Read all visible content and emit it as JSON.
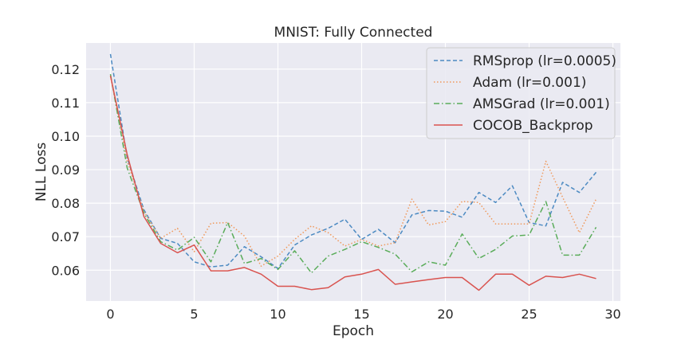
{
  "chart_data": {
    "type": "line",
    "title": "MNIST: Fully Connected",
    "xlabel": "Epoch",
    "ylabel": "NLL Loss",
    "xlim": [
      -1.45,
      30.45
    ],
    "ylim": [
      0.0508,
      0.1278
    ],
    "xticks": [
      0,
      5,
      10,
      15,
      20,
      25,
      30
    ],
    "yticks": [
      0.06,
      0.07,
      0.08,
      0.09,
      0.1,
      0.11,
      0.12
    ],
    "ytick_labels": [
      "0.06",
      "0.07",
      "0.08",
      "0.09",
      "0.10",
      "0.11",
      "0.12"
    ],
    "grid": true,
    "legend_position": "top-right",
    "x": [
      0,
      1,
      2,
      3,
      4,
      5,
      6,
      7,
      8,
      9,
      10,
      11,
      12,
      13,
      14,
      15,
      16,
      17,
      18,
      19,
      20,
      21,
      22,
      23,
      24,
      25,
      26,
      27,
      28,
      29
    ],
    "series": [
      {
        "name": "RMSprop (lr=0.0005)",
        "color": "#4c8ac2",
        "dash": "dashed",
        "values": [
          0.1245,
          0.0935,
          0.078,
          0.0695,
          0.068,
          0.0625,
          0.061,
          0.0615,
          0.067,
          0.064,
          0.0605,
          0.0675,
          0.0705,
          0.0725,
          0.0752,
          0.0692,
          0.0722,
          0.0682,
          0.0765,
          0.0778,
          0.0776,
          0.0758,
          0.0832,
          0.0802,
          0.0852,
          0.0742,
          0.0732,
          0.0862,
          0.0832,
          0.0892
        ]
      },
      {
        "name": "Adam (lr=0.001)",
        "color": "#f0985a",
        "dash": "dotted",
        "values": [
          0.118,
          0.0925,
          0.0775,
          0.0695,
          0.0725,
          0.0655,
          0.074,
          0.0742,
          0.0702,
          0.0612,
          0.0642,
          0.0692,
          0.0732,
          0.0712,
          0.0672,
          0.0692,
          0.0672,
          0.0682,
          0.0812,
          0.0735,
          0.0745,
          0.0805,
          0.0802,
          0.0738,
          0.0738,
          0.0738,
          0.0925,
          0.0818,
          0.0712,
          0.0812
        ]
      },
      {
        "name": "AMSGrad (lr=0.001)",
        "color": "#5aac5a",
        "dash": "dashdot",
        "values": [
          0.1185,
          0.0905,
          0.077,
          0.0685,
          0.066,
          0.0698,
          0.0625,
          0.0742,
          0.062,
          0.0635,
          0.0602,
          0.0658,
          0.0592,
          0.0642,
          0.0662,
          0.0685,
          0.0668,
          0.0648,
          0.0595,
          0.0625,
          0.0615,
          0.0708,
          0.0635,
          0.0662,
          0.0702,
          0.0705,
          0.0805,
          0.0645,
          0.0645,
          0.0728
        ]
      },
      {
        "name": "COCOB_Backprop",
        "color": "#d9534f",
        "dash": "solid",
        "values": [
          0.118,
          0.0945,
          0.076,
          0.068,
          0.0652,
          0.0675,
          0.0598,
          0.0598,
          0.0608,
          0.0588,
          0.0552,
          0.0552,
          0.0542,
          0.0548,
          0.058,
          0.0588,
          0.0602,
          0.0558,
          0.0565,
          0.0572,
          0.0578,
          0.0578,
          0.054,
          0.0588,
          0.0588,
          0.0555,
          0.0582,
          0.0578,
          0.0588,
          0.0575
        ]
      }
    ]
  }
}
